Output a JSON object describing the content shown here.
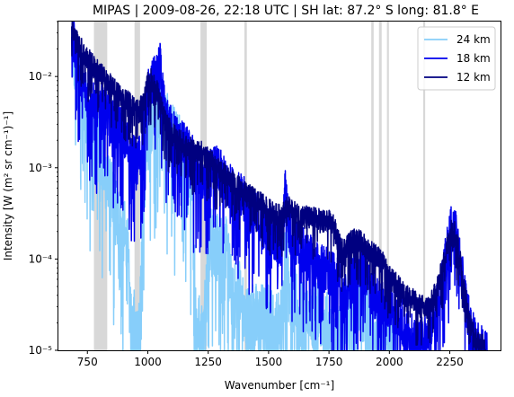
{
  "chart_data": {
    "type": "line",
    "title": "MIPAS | 2009-08-26, 22:18 UTC | SH lat: 87.2° S long: 81.8° E",
    "xlabel": "Wavenumber [cm⁻¹]",
    "ylabel": "Intensity [W (m² sr cm⁻¹)⁻¹]",
    "xlim": [
      630,
      2460
    ],
    "ylim": [
      1e-05,
      0.04
    ],
    "yscale": "log",
    "x_ticks": [
      750,
      1000,
      1250,
      1500,
      1750,
      2000,
      2250
    ],
    "x_tick_labels": [
      "750",
      "1000",
      "1250",
      "1500",
      "1750",
      "2000",
      "2250"
    ],
    "y_ticks": [
      1e-05,
      0.0001,
      0.001,
      0.01
    ],
    "y_tick_labels": [
      "10⁻⁵",
      "10⁻⁴",
      "10⁻³",
      "10⁻²"
    ],
    "legend_position": "top-right",
    "grid": false,
    "shaded_bands": [
      [
        777,
        832
      ],
      [
        945,
        968
      ],
      [
        1218,
        1244
      ],
      [
        1400,
        1410
      ],
      [
        1925,
        1935
      ],
      [
        1957,
        1968
      ],
      [
        1990,
        1998
      ],
      [
        2140,
        2148
      ]
    ],
    "series": [
      {
        "name": "24 km",
        "color": "#87cefa",
        "noise": 0.45,
        "points": [
          [
            685,
            0.025
          ],
          [
            700,
            0.012
          ],
          [
            720,
            0.007
          ],
          [
            740,
            0.004
          ],
          [
            760,
            0.0025
          ],
          [
            780,
            0.0015
          ],
          [
            790,
            0.0022
          ],
          [
            800,
            0.0014
          ],
          [
            820,
            0.0009
          ],
          [
            840,
            0.0005
          ],
          [
            860,
            0.00035
          ],
          [
            880,
            0.00025
          ],
          [
            900,
            0.00018
          ],
          [
            915,
            0.00012
          ],
          [
            925,
            3e-05
          ],
          [
            935,
            1e-05
          ],
          [
            945,
            2.5e-05
          ],
          [
            955,
            1e-05
          ],
          [
            970,
            3e-05
          ],
          [
            985,
            0.0006
          ],
          [
            1000,
            0.002
          ],
          [
            1020,
            0.003
          ],
          [
            1040,
            0.006
          ],
          [
            1050,
            0.009
          ],
          [
            1060,
            0.005
          ],
          [
            1075,
            0.0025
          ],
          [
            1100,
            0.0018
          ],
          [
            1130,
            0.0014
          ],
          [
            1160,
            0.001
          ],
          [
            1175,
            0.0007
          ],
          [
            1185,
            0.0004
          ],
          [
            1200,
            2e-05
          ],
          [
            1230,
            1.2e-05
          ],
          [
            1250,
            0.00015
          ],
          [
            1280,
            0.00012
          ],
          [
            1300,
            0.00012
          ],
          [
            1330,
            0.0001
          ],
          [
            1350,
            3e-05
          ],
          [
            1380,
            4e-05
          ],
          [
            1400,
            2e-05
          ],
          [
            1430,
            2e-05
          ],
          [
            1460,
            2e-05
          ],
          [
            1500,
            2e-05
          ],
          [
            1530,
            1.5e-05
          ],
          [
            1555,
            2e-05
          ],
          [
            1575,
            0.00018
          ],
          [
            1590,
            4e-05
          ],
          [
            1620,
            2.5e-05
          ],
          [
            1650,
            2e-05
          ],
          [
            1700,
            2e-05
          ],
          [
            1750,
            1.5e-05
          ],
          [
            1790,
            1.2e-05
          ],
          [
            1820,
            2.5e-05
          ],
          [
            1850,
            4e-05
          ],
          [
            1880,
            3e-05
          ],
          [
            1920,
            2e-05
          ],
          [
            1960,
            1.5e-05
          ],
          [
            2000,
            1.2e-05
          ],
          [
            2030,
            1e-05
          ]
        ]
      },
      {
        "name": "18 km",
        "color": "#0000ee",
        "noise": 0.3,
        "points": [
          [
            685,
            0.03
          ],
          [
            700,
            0.018
          ],
          [
            720,
            0.01
          ],
          [
            740,
            0.007
          ],
          [
            760,
            0.005
          ],
          [
            780,
            0.0042
          ],
          [
            800,
            0.0048
          ],
          [
            830,
            0.0035
          ],
          [
            860,
            0.0028
          ],
          [
            890,
            0.0024
          ],
          [
            910,
            0.002
          ],
          [
            925,
            0.0015
          ],
          [
            940,
            0.0012
          ],
          [
            955,
            0.0011
          ],
          [
            970,
            0.0012
          ],
          [
            985,
            0.0028
          ],
          [
            1000,
            0.006
          ],
          [
            1020,
            0.008
          ],
          [
            1040,
            0.009
          ],
          [
            1050,
            0.013
          ],
          [
            1060,
            0.006
          ],
          [
            1075,
            0.003
          ],
          [
            1100,
            0.0024
          ],
          [
            1130,
            0.0018
          ],
          [
            1160,
            0.0015
          ],
          [
            1185,
            0.0012
          ],
          [
            1195,
            0.0008
          ],
          [
            1205,
            0.0007
          ],
          [
            1220,
            0.0007
          ],
          [
            1240,
            0.0008
          ],
          [
            1260,
            0.0008
          ],
          [
            1280,
            0.0009
          ],
          [
            1300,
            0.0008
          ],
          [
            1330,
            0.0006
          ],
          [
            1360,
            0.0005
          ],
          [
            1400,
            0.0004
          ],
          [
            1430,
            0.0003
          ],
          [
            1460,
            0.00025
          ],
          [
            1500,
            0.0002
          ],
          [
            1530,
            0.00015
          ],
          [
            1555,
            0.00012
          ],
          [
            1570,
            0.0006
          ],
          [
            1585,
            0.0002
          ],
          [
            1600,
            0.00015
          ],
          [
            1630,
            0.00012
          ],
          [
            1660,
            0.0001
          ],
          [
            1700,
            8e-05
          ],
          [
            1740,
            7e-05
          ],
          [
            1765,
            6e-05
          ],
          [
            1790,
            5e-05
          ],
          [
            1810,
            3e-05
          ],
          [
            1840,
            5e-05
          ],
          [
            1870,
            8e-05
          ],
          [
            1900,
            6e-05
          ],
          [
            1930,
            4e-05
          ],
          [
            1960,
            3e-05
          ],
          [
            1990,
            3e-05
          ],
          [
            2020,
            2.5e-05
          ],
          [
            2050,
            2e-05
          ],
          [
            2080,
            1.5e-05
          ],
          [
            2110,
            1e-05
          ],
          [
            2140,
            1.2e-05
          ],
          [
            2170,
            1.5e-05
          ],
          [
            2200,
            3e-05
          ],
          [
            2230,
            8e-05
          ],
          [
            2250,
            0.00018
          ],
          [
            2265,
            0.0002
          ],
          [
            2280,
            0.00015
          ],
          [
            2300,
            6e-05
          ],
          [
            2330,
            2e-05
          ],
          [
            2360,
            1e-05
          ],
          [
            2390,
            1e-05
          ],
          [
            2405,
            1e-05
          ]
        ]
      },
      {
        "name": "12 km",
        "color": "#000080",
        "noise": 0.15,
        "points": [
          [
            685,
            0.035
          ],
          [
            700,
            0.025
          ],
          [
            720,
            0.02
          ],
          [
            750,
            0.015
          ],
          [
            780,
            0.012
          ],
          [
            800,
            0.0105
          ],
          [
            830,
            0.0085
          ],
          [
            860,
            0.0068
          ],
          [
            890,
            0.0058
          ],
          [
            920,
            0.005
          ],
          [
            950,
            0.0042
          ],
          [
            965,
            0.004
          ],
          [
            975,
            0.0045
          ],
          [
            990,
            0.006
          ],
          [
            1000,
            0.008
          ],
          [
            1015,
            0.009
          ],
          [
            1030,
            0.0075
          ],
          [
            1040,
            0.0065
          ],
          [
            1050,
            0.005
          ],
          [
            1065,
            0.0035
          ],
          [
            1080,
            0.0028
          ],
          [
            1100,
            0.0023
          ],
          [
            1130,
            0.0019
          ],
          [
            1160,
            0.0016
          ],
          [
            1185,
            0.0015
          ],
          [
            1220,
            0.0014
          ],
          [
            1250,
            0.0012
          ],
          [
            1280,
            0.001
          ],
          [
            1310,
            0.00085
          ],
          [
            1340,
            0.0007
          ],
          [
            1370,
            0.0006
          ],
          [
            1400,
            0.0005
          ],
          [
            1430,
            0.00045
          ],
          [
            1460,
            0.0004
          ],
          [
            1490,
            0.00035
          ],
          [
            1520,
            0.0003
          ],
          [
            1550,
            0.00028
          ],
          [
            1580,
            0.00035
          ],
          [
            1610,
            0.0003
          ],
          [
            1640,
            0.00028
          ],
          [
            1670,
            0.00027
          ],
          [
            1700,
            0.00026
          ],
          [
            1730,
            0.00025
          ],
          [
            1765,
            0.00024
          ],
          [
            1800,
            0.00012
          ],
          [
            1830,
            0.00014
          ],
          [
            1860,
            0.00016
          ],
          [
            1890,
            0.00014
          ],
          [
            1920,
            0.00012
          ],
          [
            1950,
            0.0001
          ],
          [
            1980,
            8e-05
          ],
          [
            2000,
            6e-05
          ],
          [
            2030,
            5e-05
          ],
          [
            2060,
            4e-05
          ],
          [
            2090,
            3.5e-05
          ],
          [
            2120,
            3e-05
          ],
          [
            2150,
            2.8e-05
          ],
          [
            2170,
            3e-05
          ],
          [
            2190,
            4e-05
          ],
          [
            2210,
            6e-05
          ],
          [
            2230,
            0.0001
          ],
          [
            2250,
            0.00018
          ],
          [
            2265,
            0.00022
          ],
          [
            2280,
            0.00015
          ],
          [
            2300,
            7e-05
          ],
          [
            2330,
            2e-05
          ],
          [
            2360,
            1.2e-05
          ],
          [
            2400,
            1e-05
          ]
        ]
      }
    ]
  }
}
